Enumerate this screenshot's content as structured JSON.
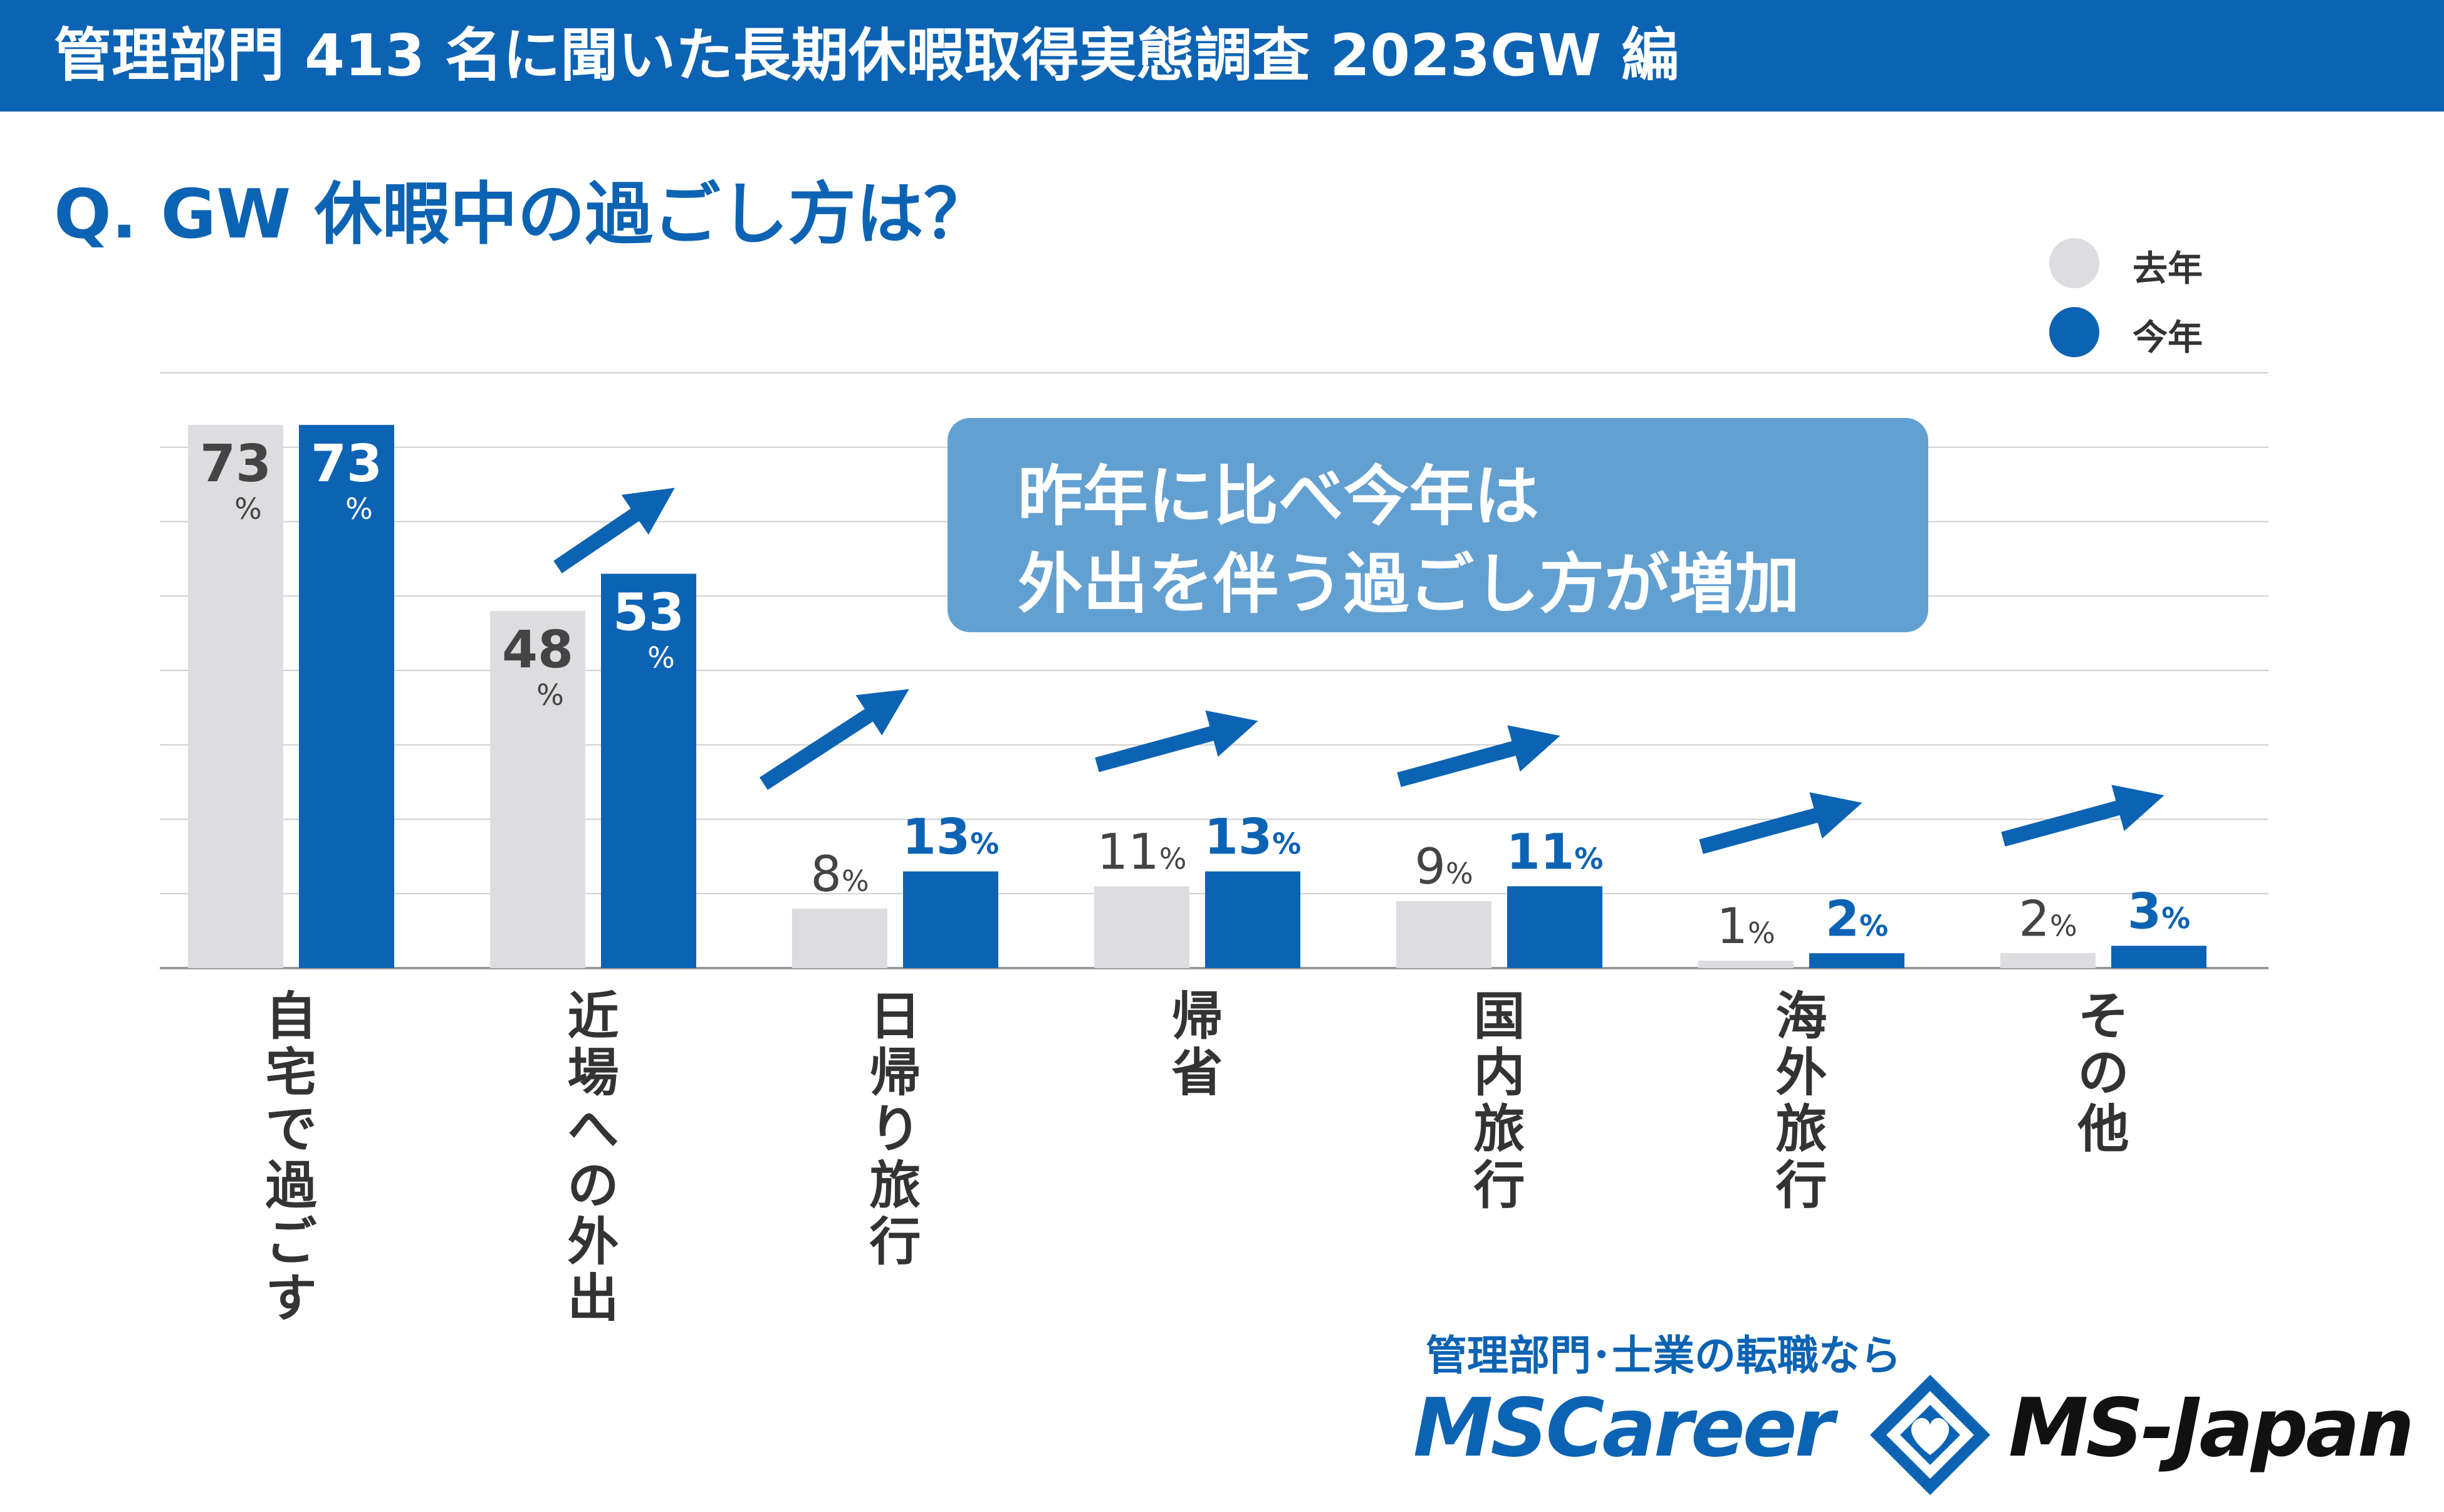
{
  "header": {
    "title": "管理部門 413 名に聞いた長期休暇取得実態調査 2023GW 編"
  },
  "question": "Q. GW 休暇中の過ごし方は？",
  "colors": {
    "header_bg": "#0d63b3",
    "accent": "#0d63b3",
    "last_year": "#dddde0",
    "this_year": "#0d63b3",
    "callout_bg": "#63a0d2",
    "gridline": "#cfcfcf",
    "value_label_last_year": "#444444"
  },
  "legend": {
    "items": [
      {
        "label": "去年",
        "color": "#dddde0"
      },
      {
        "label": "今年",
        "color": "#0d63b3"
      }
    ]
  },
  "callout": {
    "lines": [
      "昨年に比べ今年は",
      "外出を伴う過ごし方が増加"
    ]
  },
  "chart_data": {
    "type": "bar",
    "categories": [
      "自宅で過ごす",
      "近場への外出",
      "日帰り旅行",
      "帰省",
      "国内旅行",
      "海外旅行",
      "その他"
    ],
    "series": [
      {
        "name": "去年",
        "values": [
          73,
          48,
          8,
          11,
          9,
          1,
          2
        ]
      },
      {
        "name": "今年",
        "values": [
          73,
          53,
          13,
          13,
          11,
          2,
          3
        ]
      }
    ],
    "unit": "%",
    "ylim": [
      0,
      80
    ],
    "grid": true,
    "legend_position": "top-right",
    "increase_arrows": [
      false,
      true,
      true,
      true,
      true,
      true,
      true
    ]
  },
  "footer": {
    "caption": "管理部門･士業の転職なら",
    "brand_left": "MSCareer",
    "brand_right": "MS-Japan",
    "logo_mark": "ms-japan-diamond-logo"
  }
}
